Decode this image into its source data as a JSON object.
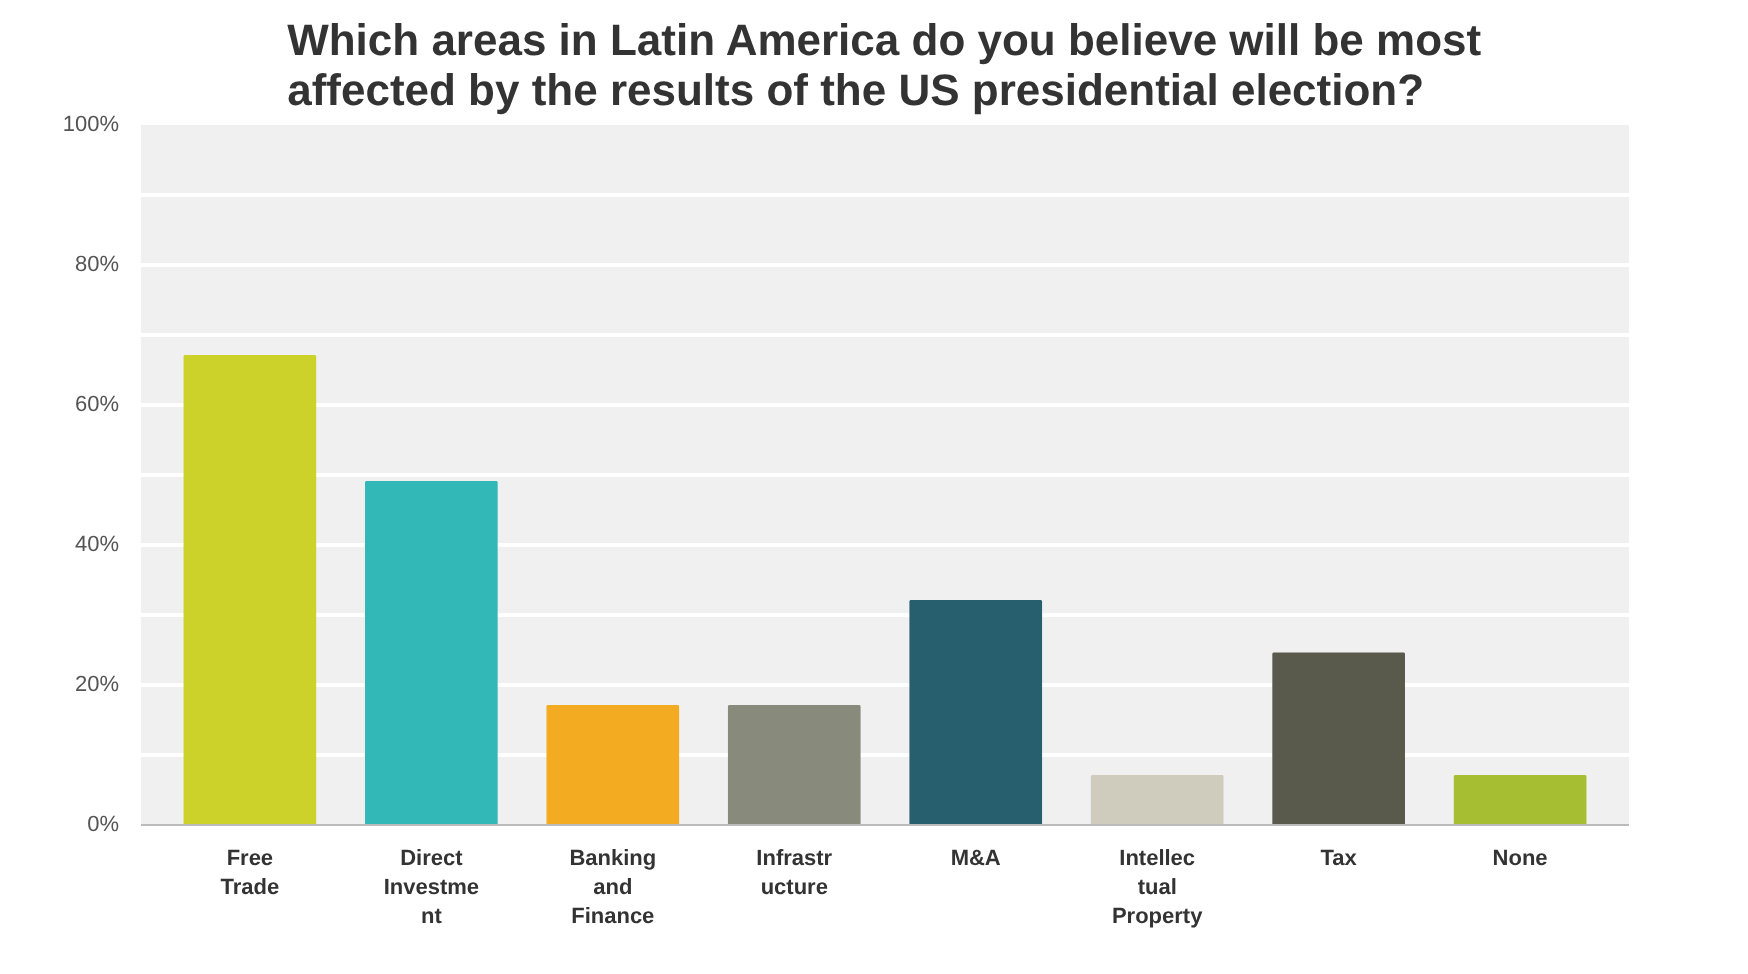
{
  "chart_data": {
    "type": "bar",
    "title": "Which areas in Latin America do you believe will be most\naffected by the results of the US presidential election?",
    "categories": [
      "Free\nTrade",
      "Direct\nInvestme\nnt",
      "Banking\nand\nFinance",
      "Infrastr\nucture",
      "M&A",
      "Intellec\ntual\nProperty",
      "Tax",
      "None"
    ],
    "values": [
      67,
      49,
      17,
      17,
      32,
      7,
      24.5,
      7
    ],
    "colors": [
      "#cdd22a",
      "#33b8b8",
      "#f3ac22",
      "#888b7b",
      "#285f6e",
      "#d0ccbd",
      "#5a5a4c",
      "#a6bf32"
    ],
    "ylim": [
      0,
      100
    ],
    "yticks": [
      {
        "value": 0,
        "label": "0%"
      },
      {
        "value": 10,
        "label": null
      },
      {
        "value": 20,
        "label": "20%"
      },
      {
        "value": 30,
        "label": null
      },
      {
        "value": 40,
        "label": "40%"
      },
      {
        "value": 50,
        "label": null
      },
      {
        "value": 60,
        "label": "60%"
      },
      {
        "value": 70,
        "label": null
      },
      {
        "value": 80,
        "label": "80%"
      },
      {
        "value": 90,
        "label": null
      },
      {
        "value": 100,
        "label": "100%"
      }
    ],
    "grid": "y"
  }
}
